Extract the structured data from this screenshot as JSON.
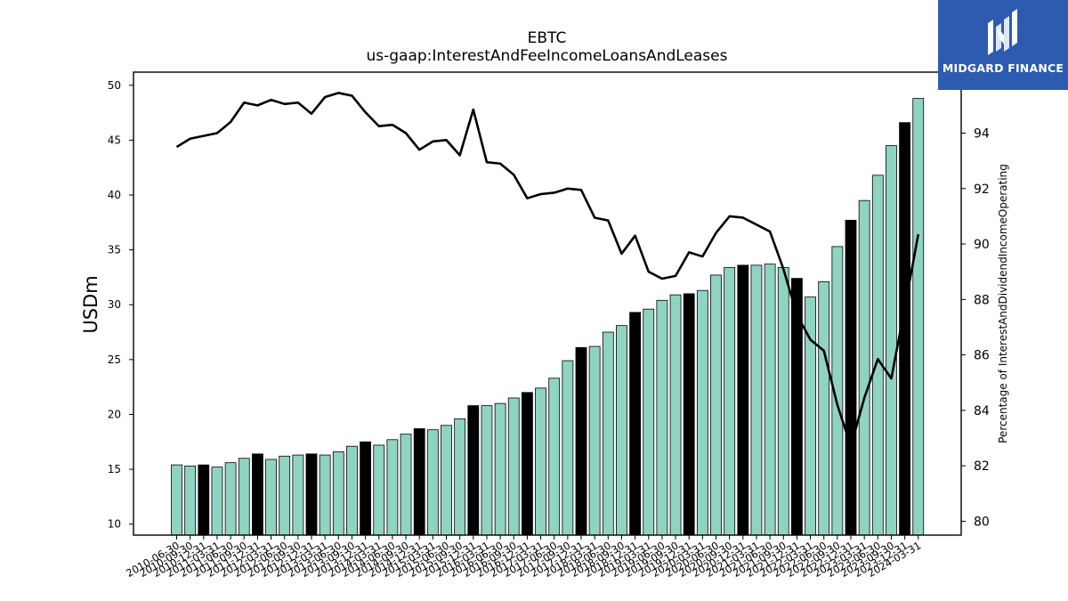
{
  "chart_data": {
    "type": "bar",
    "title": "EBTC",
    "subtitle": "us-gaap:InterestAndFeeIncomeLoansAndLeases",
    "ylabel": "USDm",
    "y2label": "Percentage of InterestAndDividendIncomeOperating",
    "ylim": [
      9,
      51.2
    ],
    "y2lim": [
      79.5,
      96.2
    ],
    "yticks": [
      10,
      15,
      20,
      25,
      30,
      35,
      40,
      45,
      50
    ],
    "y2ticks": [
      80,
      82,
      84,
      86,
      88,
      90,
      92,
      94
    ],
    "categories": [
      "2010-06-30",
      "2010-09-30",
      "2010-12-31",
      "2011-03-31",
      "2011-06-30",
      "2011-09-30",
      "2011-12-31",
      "2012-03-31",
      "2012-06-30",
      "2012-09-30",
      "2012-12-31",
      "2013-03-31",
      "2013-06-30",
      "2013-09-30",
      "2013-12-31",
      "2014-03-31",
      "2014-06-30",
      "2014-09-30",
      "2014-12-31",
      "2015-03-31",
      "2015-06-30",
      "2015-09-30",
      "2015-12-31",
      "2016-03-31",
      "2016-06-30",
      "2016-09-30",
      "2016-12-31",
      "2017-03-31",
      "2017-06-30",
      "2017-09-30",
      "2017-12-31",
      "2018-03-31",
      "2018-06-30",
      "2018-09-30",
      "2018-12-31",
      "2019-03-31",
      "2019-06-30",
      "2019-09-30",
      "2019-12-31",
      "2020-03-31",
      "2020-06-30",
      "2020-09-30",
      "2020-12-31",
      "2021-03-31",
      "2021-06-30",
      "2021-09-30",
      "2021-12-31",
      "2022-03-31",
      "2022-06-30",
      "2022-09-30",
      "2022-12-31",
      "2023-03-31",
      "2023-06-30",
      "2023-09-30",
      "2023-12-31",
      "2024-03-31"
    ],
    "series": [
      {
        "kind": "bar",
        "axis": "left",
        "values": [
          15.4,
          15.3,
          15.4,
          15.2,
          15.6,
          16.0,
          16.4,
          15.9,
          16.2,
          16.3,
          16.4,
          16.3,
          16.6,
          17.1,
          17.5,
          17.2,
          17.7,
          18.2,
          18.7,
          18.6,
          19.0,
          19.6,
          20.8,
          20.8,
          21.0,
          21.5,
          22.0,
          22.4,
          23.3,
          24.9,
          26.1,
          26.2,
          27.5,
          28.1,
          29.3,
          29.6,
          30.4,
          30.9,
          31.0,
          31.3,
          32.7,
          33.4,
          33.6,
          33.6,
          33.7,
          33.4,
          32.4,
          30.7,
          32.1,
          35.3,
          37.7,
          39.5,
          41.8,
          44.5,
          46.6,
          48.8
        ]
      },
      {
        "kind": "line",
        "axis": "right",
        "values": [
          93.5,
          93.8,
          93.9,
          94.0,
          94.4,
          95.1,
          95.0,
          95.2,
          95.05,
          95.1,
          94.7,
          95.3,
          95.45,
          95.35,
          94.75,
          94.25,
          94.3,
          94.0,
          93.4,
          93.7,
          93.75,
          93.2,
          94.85,
          92.95,
          92.9,
          92.5,
          91.65,
          91.8,
          91.85,
          92.0,
          91.95,
          90.95,
          90.85,
          89.65,
          90.3,
          89.0,
          88.75,
          88.85,
          89.7,
          89.55,
          90.4,
          91.0,
          90.95,
          90.7,
          90.45,
          89.1,
          87.45,
          86.55,
          86.15,
          84.2,
          82.7,
          84.45,
          85.85,
          85.15,
          87.7,
          90.35
        ]
      }
    ],
    "bar_color": "#8fd3c3",
    "highlight_color": "#000000",
    "highlight_every": 4,
    "line_color": "#000000"
  },
  "logo": {
    "text": "MIDGARD FINANCE",
    "background": "#2c5bb0"
  }
}
